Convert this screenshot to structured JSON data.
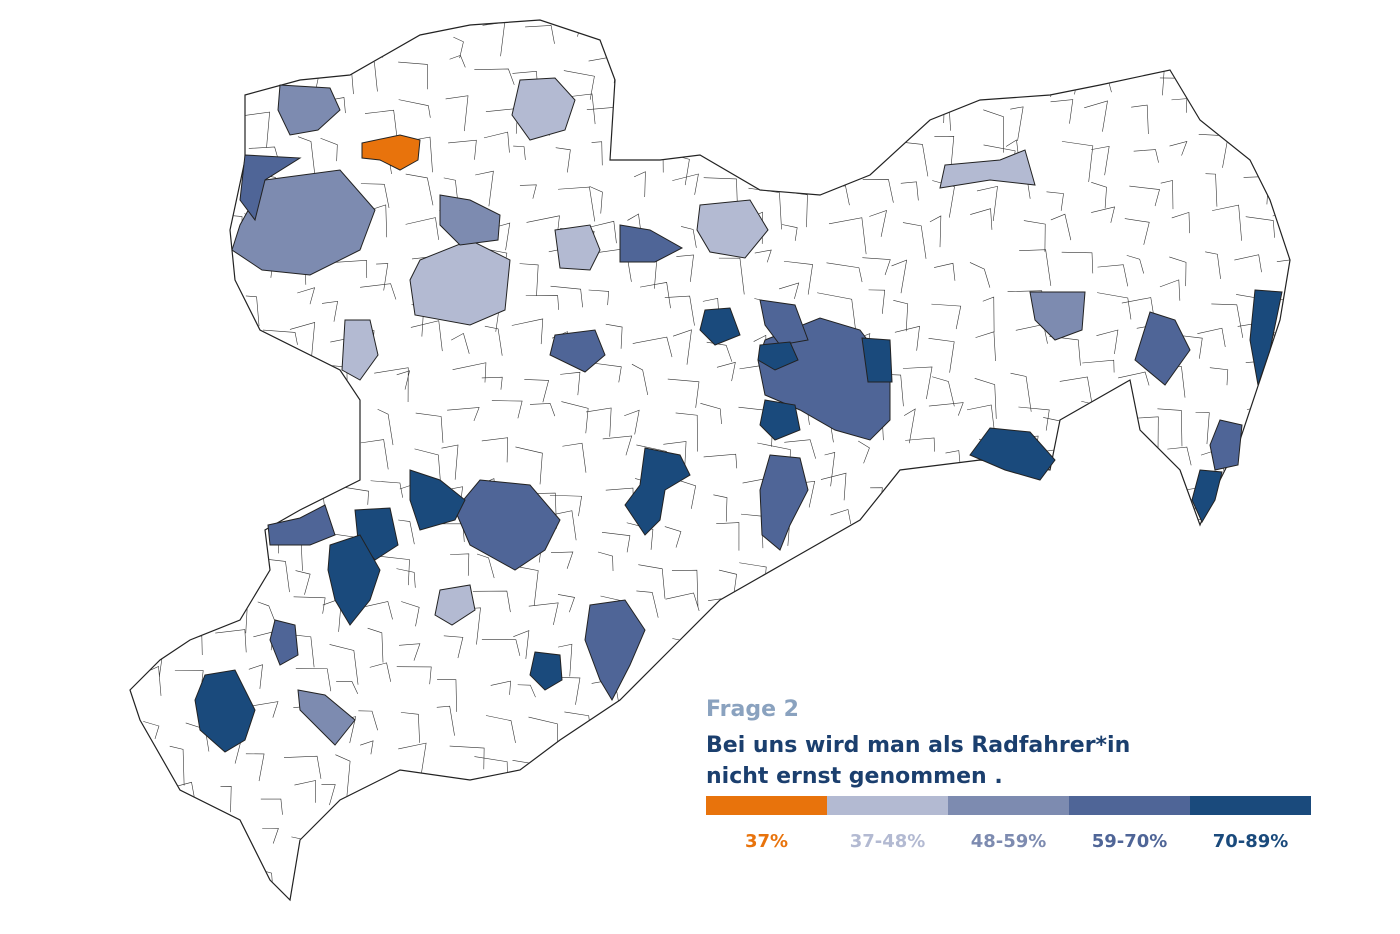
{
  "legend": {
    "kicker": "Frage 2",
    "question_lines": [
      "Bei uns wird man als Radfahrer*in",
      "nicht ernst genommen ."
    ],
    "items": [
      {
        "label": "37%",
        "color": "#e8730c"
      },
      {
        "label": "37-48%",
        "color": "#b3bad2"
      },
      {
        "label": "48-59%",
        "color": "#7d8bb0"
      },
      {
        "label": "59-70%",
        "color": "#4f6597"
      },
      {
        "label": "70-89%",
        "color": "#1a4a7c"
      }
    ]
  }
}
